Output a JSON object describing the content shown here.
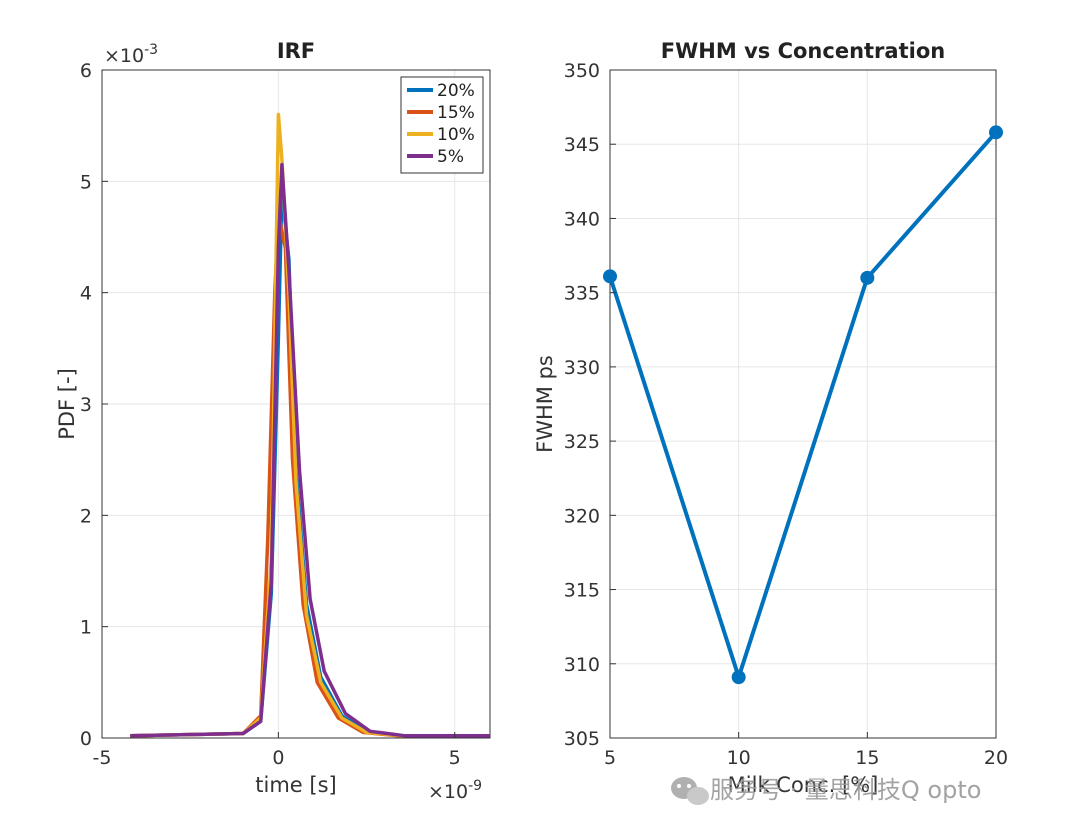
{
  "chart_data": [
    {
      "type": "line",
      "title": "IRF",
      "xlabel": "time [s]",
      "ylabel": "PDF [-]",
      "x_multiplier": {
        "base": "×10",
        "exp": "-9"
      },
      "y_multiplier": {
        "base": "×10",
        "exp": "-3"
      },
      "xlim": [
        -5,
        6
      ],
      "ylim": [
        0,
        6
      ],
      "x_ticks": [
        -5,
        0,
        5
      ],
      "y_ticks": [
        0,
        1,
        2,
        3,
        4,
        5,
        6
      ],
      "grid": true,
      "legend_position": "top-right",
      "series": [
        {
          "name": "20%",
          "color": "#0072BD",
          "x": [
            -4.2,
            -1.0,
            -0.5,
            -0.2,
            0.0,
            0.1,
            0.3,
            0.5,
            0.8,
            1.2,
            1.8,
            2.5,
            3.5,
            6.0
          ],
          "y": [
            0.02,
            0.04,
            0.15,
            1.3,
            3.6,
            4.9,
            4.3,
            2.4,
            1.2,
            0.55,
            0.2,
            0.06,
            0.02,
            0.02
          ]
        },
        {
          "name": "15%",
          "color": "#D95319",
          "x": [
            -4.2,
            -1.0,
            -0.5,
            -0.3,
            -0.1,
            0.0,
            0.2,
            0.4,
            0.7,
            1.1,
            1.7,
            2.4,
            3.4,
            6.0
          ],
          "y": [
            0.02,
            0.04,
            0.2,
            1.8,
            4.0,
            4.7,
            4.4,
            2.5,
            1.2,
            0.5,
            0.18,
            0.05,
            0.02,
            0.02
          ]
        },
        {
          "name": "10%",
          "color": "#EDB120",
          "x": [
            -4.2,
            -1.0,
            -0.5,
            -0.2,
            0.0,
            0.1,
            0.3,
            0.5,
            0.8,
            1.2,
            1.8,
            2.5,
            3.5,
            6.0
          ],
          "y": [
            0.02,
            0.04,
            0.18,
            1.6,
            5.6,
            5.2,
            4.0,
            2.3,
            1.1,
            0.5,
            0.18,
            0.05,
            0.02,
            0.02
          ]
        },
        {
          "name": "5%",
          "color": "#7E2F8E",
          "x": [
            -4.2,
            -1.0,
            -0.5,
            -0.2,
            0.0,
            0.1,
            0.3,
            0.6,
            0.9,
            1.3,
            1.9,
            2.6,
            3.6,
            6.0
          ],
          "y": [
            0.02,
            0.04,
            0.15,
            1.4,
            4.4,
            5.15,
            4.2,
            2.4,
            1.25,
            0.6,
            0.22,
            0.06,
            0.02,
            0.02
          ]
        }
      ]
    },
    {
      "type": "line",
      "title": "FWHM vs Concentration",
      "xlabel": "Milk Conc. [%]",
      "ylabel": "FWHM ps",
      "xlim": [
        5,
        20
      ],
      "ylim": [
        305,
        350
      ],
      "x_ticks": [
        5,
        10,
        15,
        20
      ],
      "y_ticks": [
        305,
        310,
        315,
        320,
        325,
        330,
        335,
        340,
        345,
        350
      ],
      "grid": true,
      "series": [
        {
          "color": "#0072BD",
          "x": [
            5,
            10,
            15,
            20
          ],
          "y": [
            336.1,
            309.1,
            336.0,
            345.8
          ]
        }
      ]
    }
  ],
  "watermark": {
    "text": "服务号 · 量思科技Q opto",
    "icon": "wechat-icon"
  }
}
